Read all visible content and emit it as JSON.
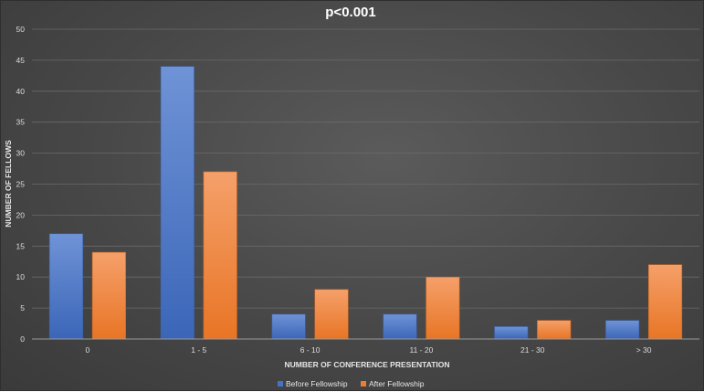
{
  "chart_data": {
    "type": "bar",
    "title": "p<0.001",
    "xlabel": "NUMBER OF CONFERENCE PRESENTATION",
    "ylabel": "NUMBER OF FELLOWS",
    "categories": [
      "0",
      "1 - 5",
      "6 - 10",
      "11 - 20",
      "21 - 30",
      "> 30"
    ],
    "series": [
      {
        "name": "Before Fellowship",
        "values": [
          17,
          44,
          4,
          4,
          2,
          3
        ],
        "color": "#4472c4"
      },
      {
        "name": "After Fellowship",
        "values": [
          14,
          27,
          8,
          10,
          3,
          12
        ],
        "color": "#ed7d31"
      }
    ],
    "ylim": [
      0,
      50
    ],
    "yticks": [
      "0",
      "5",
      "10",
      "15",
      "20",
      "25",
      "30",
      "35",
      "40",
      "45",
      "50"
    ],
    "grid": true,
    "legend_position": "bottom"
  }
}
